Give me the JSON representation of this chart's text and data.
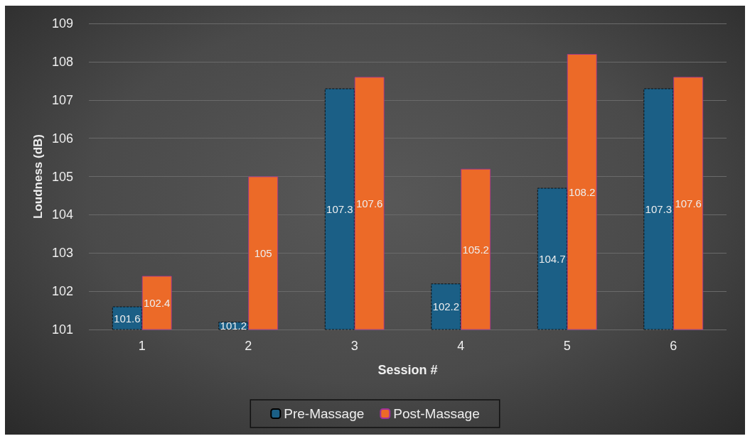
{
  "chart_data": {
    "type": "bar",
    "xlabel": "Session #",
    "ylabel": "Loudness (dB)",
    "categories": [
      "1",
      "2",
      "3",
      "4",
      "5",
      "6"
    ],
    "series": [
      {
        "name": "Pre-Massage",
        "color": "#1b5f86",
        "values": [
          101.6,
          101.2,
          107.3,
          102.2,
          104.7,
          107.3
        ]
      },
      {
        "name": "Post-Massage",
        "color": "#ec6a28",
        "values": [
          102.4,
          105,
          107.6,
          105.2,
          108.2,
          107.6
        ]
      }
    ],
    "ylim": [
      101,
      109
    ],
    "yticks": [
      101,
      102,
      103,
      104,
      105,
      106,
      107,
      108,
      109
    ],
    "grid": "y",
    "legend": "bottom",
    "data_labels": true
  }
}
